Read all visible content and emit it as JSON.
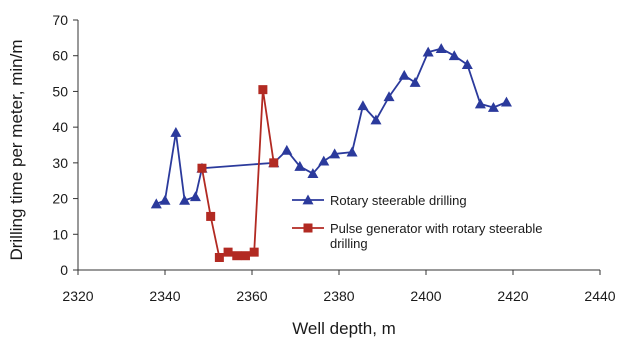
{
  "chart_data": {
    "type": "line",
    "title": "",
    "xlabel": "Well depth, m",
    "ylabel": "Drilling time per meter, min/m",
    "xlim": [
      2320,
      2440
    ],
    "ylim": [
      0,
      70
    ],
    "x_ticks": [
      "2320",
      "2340",
      "2360",
      "2380",
      "2400",
      "2420",
      "2440"
    ],
    "y_ticks": [
      "0",
      "10",
      "20",
      "30",
      "40",
      "50",
      "60",
      "70"
    ],
    "grid": false,
    "legend_position": "lower-right",
    "series": [
      {
        "name": "Rotary steerable drilling",
        "color": "#2b3a9c",
        "marker": "triangle",
        "points": [
          [
            2338,
            18.5
          ],
          [
            2340,
            19.5
          ],
          [
            2342.5,
            38.5
          ],
          [
            2344.5,
            19.5
          ],
          [
            2347,
            20.5
          ],
          [
            2348.5,
            28.5
          ],
          [
            2365,
            30
          ],
          [
            2368,
            33.5
          ],
          [
            2371,
            29
          ],
          [
            2374,
            27
          ],
          [
            2376.5,
            30.5
          ],
          [
            2379,
            32.5
          ],
          [
            2383,
            33
          ],
          [
            2385.5,
            46
          ],
          [
            2388.5,
            42
          ],
          [
            2391.5,
            48.5
          ],
          [
            2395,
            54.5
          ],
          [
            2397.5,
            52.5
          ],
          [
            2400.5,
            61
          ],
          [
            2403.5,
            62
          ],
          [
            2406.5,
            60
          ],
          [
            2409.5,
            57.5
          ],
          [
            2412.5,
            46.5
          ],
          [
            2415.5,
            45.5
          ],
          [
            2418.5,
            47
          ]
        ]
      },
      {
        "name": "Pulse generator with rotary steerable drilling",
        "name_lines": [
          "Pulse generator with rotary steerable",
          "drilling"
        ],
        "color": "#b22a22",
        "marker": "square",
        "points": [
          [
            2348.5,
            28.5
          ],
          [
            2350.5,
            15
          ],
          [
            2352.5,
            3.5
          ],
          [
            2354.5,
            5
          ],
          [
            2356.5,
            4
          ],
          [
            2358.5,
            4
          ],
          [
            2360.5,
            5
          ],
          [
            2362.5,
            50.5
          ],
          [
            2365,
            30
          ]
        ]
      }
    ]
  }
}
